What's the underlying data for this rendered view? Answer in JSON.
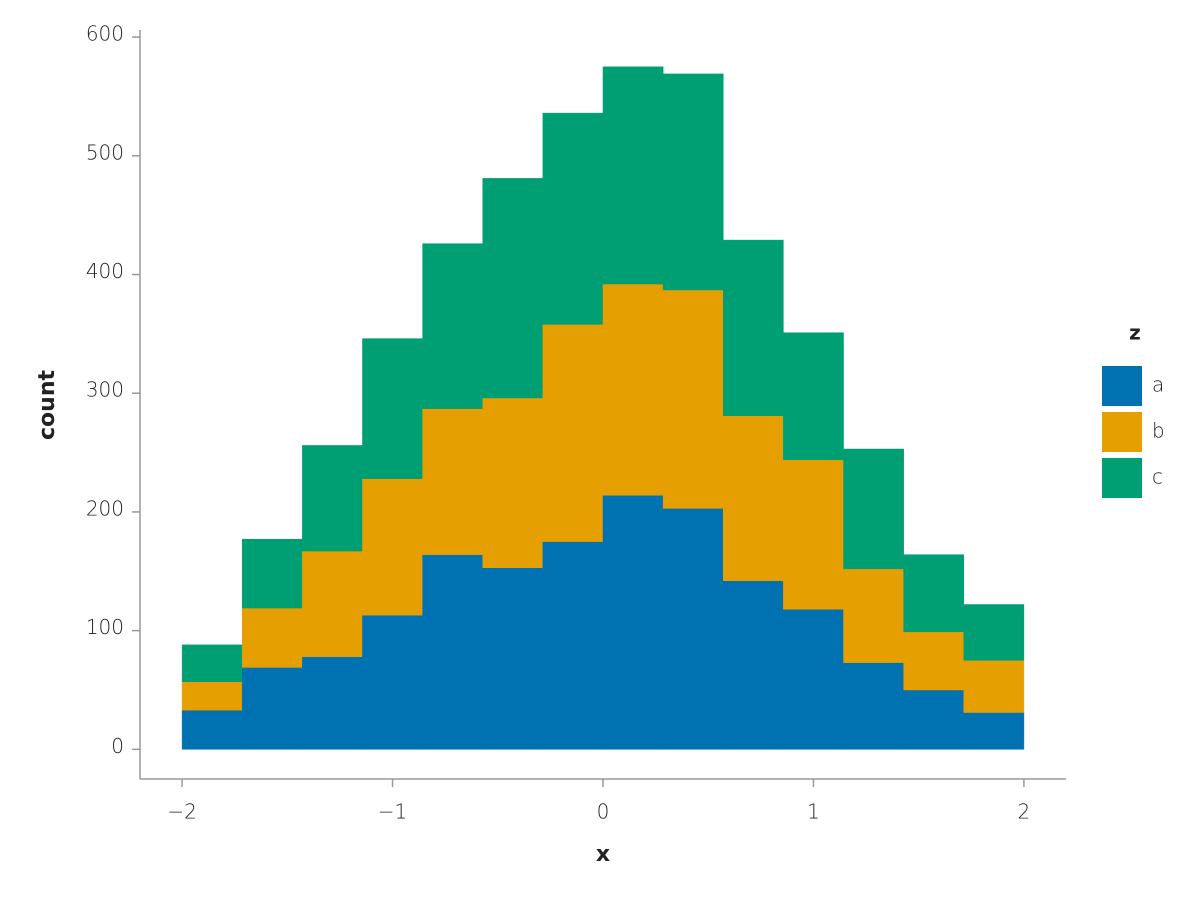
{
  "chart_data": {
    "type": "histogram",
    "stacked": true,
    "x_label": "x",
    "y_label": "count",
    "legend_title": "z",
    "legend_position": "right",
    "bins": [
      -2,
      -1.7143,
      -1.4286,
      -1.1429,
      -0.8571,
      -0.5714,
      -0.2857,
      0,
      0.2857,
      0.5714,
      0.8571,
      1.1429,
      1.4286,
      1.7143,
      2
    ],
    "series": [
      {
        "name": "a",
        "color": "#0072b2",
        "values": [
          33,
          69,
          78,
          113,
          164,
          153,
          175,
          214,
          203,
          142,
          118,
          73,
          50,
          31
        ]
      },
      {
        "name": "b",
        "color": "#e69f00",
        "values": [
          24,
          50,
          89,
          115,
          123,
          143,
          183,
          178,
          184,
          139,
          126,
          79,
          49,
          44
        ]
      },
      {
        "name": "c",
        "color": "#009e73",
        "values": [
          31,
          58,
          89,
          118,
          139,
          185,
          178,
          183,
          182,
          148,
          107,
          101,
          65,
          47
        ]
      }
    ],
    "xlim": [
      -2.2,
      2.2
    ],
    "ylim": [
      -25,
      606
    ],
    "xticks": [
      {
        "value": -2,
        "label": "−2"
      },
      {
        "value": -1,
        "label": "−1"
      },
      0,
      1,
      2
    ],
    "yticks": [
      0,
      100,
      200,
      300,
      400,
      500,
      600
    ],
    "grid": false
  }
}
